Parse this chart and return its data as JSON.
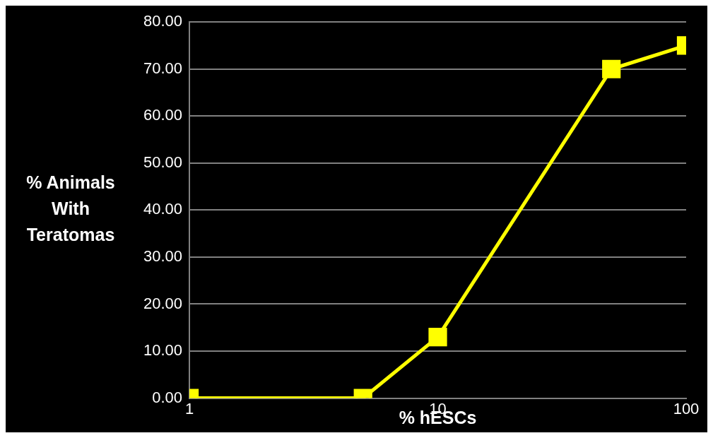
{
  "chart_data": {
    "type": "line",
    "xlabel": "% hESCs",
    "ylabel": "% Animals With Teratomas",
    "x": [
      1,
      5,
      10,
      50,
      100
    ],
    "series": [
      {
        "color": "#ffff00",
        "values": [
          0,
          0,
          13,
          70,
          75
        ]
      }
    ],
    "log": "x",
    "xlim": [
      1,
      100
    ],
    "xticks": [
      1,
      10,
      100
    ],
    "ylim": [
      0,
      80
    ],
    "yticks": [
      {
        "value": 0,
        "label": "0.00"
      },
      {
        "value": 10,
        "label": "10.00"
      },
      {
        "value": 20,
        "label": "20.00"
      },
      {
        "value": 30,
        "label": "30.00"
      },
      {
        "value": 40,
        "label": "40.00"
      },
      {
        "value": 50,
        "label": "50.00"
      },
      {
        "value": 60,
        "label": "60.00"
      },
      {
        "value": 70,
        "label": "70.00"
      },
      {
        "value": 80,
        "label": "80.00"
      }
    ],
    "grid": "y",
    "legend": false,
    "marker": "square",
    "line_style": "solid"
  }
}
